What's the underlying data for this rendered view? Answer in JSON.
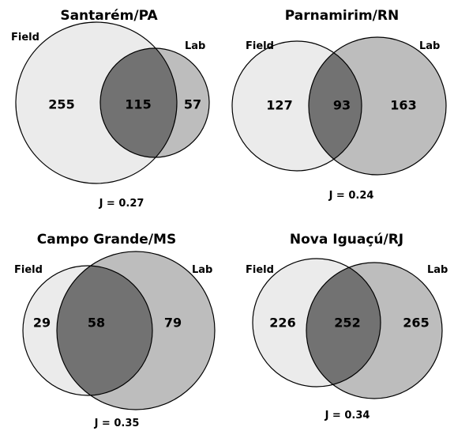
{
  "colors": {
    "field_fill": "#ebebeb",
    "lab_fill": "#bdbdbd",
    "overlap_fill": "#727272",
    "stroke": "#000000"
  },
  "panels": [
    {
      "title": "Santarém/PA",
      "field_label": "Field",
      "lab_label": "Lab",
      "field_only": "255",
      "overlap": "115",
      "lab_only": "57",
      "jaccard": "J = 0.27"
    },
    {
      "title": "Parnamirim/RN",
      "field_label": "Field",
      "lab_label": "Lab",
      "field_only": "127",
      "overlap": "93",
      "lab_only": "163",
      "jaccard": "J = 0.24"
    },
    {
      "title": "Campo Grande/MS",
      "field_label": "Field",
      "lab_label": "Lab",
      "field_only": "29",
      "overlap": "58",
      "lab_only": "79",
      "jaccard": "J = 0.35"
    },
    {
      "title": "Nova Iguaçú/RJ",
      "field_label": "Field",
      "lab_label": "Lab",
      "field_only": "226",
      "overlap": "252",
      "lab_only": "265",
      "jaccard": "J = 0.34"
    }
  ]
}
